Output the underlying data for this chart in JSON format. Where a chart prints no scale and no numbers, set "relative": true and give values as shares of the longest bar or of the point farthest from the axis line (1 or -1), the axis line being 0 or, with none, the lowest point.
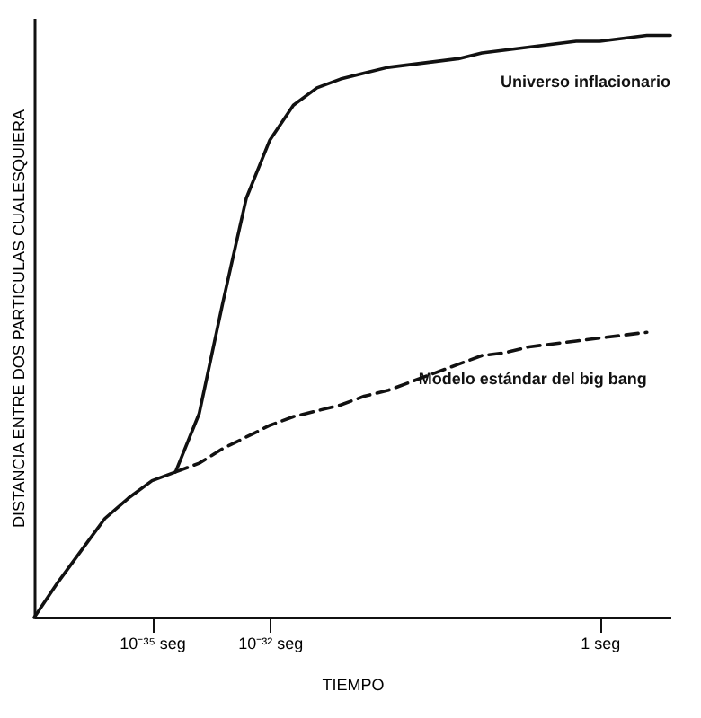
{
  "chart_data": {
    "type": "line",
    "relative": true,
    "xlabel": "TIEMPO",
    "ylabel": "DISTANCIA ENTRE DOS PARTICULAS CUALESQUIERA",
    "legend": false,
    "marker": "none",
    "categories": [
      null,
      null,
      null,
      null,
      null,
      "10⁻³⁵ seg",
      null,
      null,
      null,
      null,
      "10⁻³² seg",
      null,
      null,
      null,
      null,
      null,
      null,
      null,
      null,
      null,
      null,
      null,
      null,
      null,
      "1 seg",
      null,
      null,
      null
    ],
    "series": [
      {
        "name": "Universo inflacionario",
        "color": "#111111",
        "line_style": "solid",
        "values": [
          0,
          0.06,
          0.115,
          0.17,
          0.205,
          0.235,
          0.25,
          0.35,
          0.54,
          0.72,
          0.82,
          0.88,
          0.91,
          0.925,
          0.935,
          0.945,
          0.95,
          0.955,
          0.96,
          0.97,
          0.975,
          0.98,
          0.985,
          0.99,
          0.99,
          0.995,
          1,
          1
        ]
      },
      {
        "name": "Modelo estándar del big bang",
        "color": "#111111",
        "line_style": "dashed",
        "values": [
          null,
          null,
          null,
          null,
          null,
          null,
          0.25,
          0.265,
          0.29,
          0.31,
          0.33,
          0.345,
          0.355,
          0.365,
          0.38,
          0.39,
          0.405,
          0.42,
          0.435,
          0.45,
          0.455,
          0.465,
          0.47,
          0.475,
          0.48,
          0.485,
          0.49,
          null
        ]
      }
    ]
  }
}
